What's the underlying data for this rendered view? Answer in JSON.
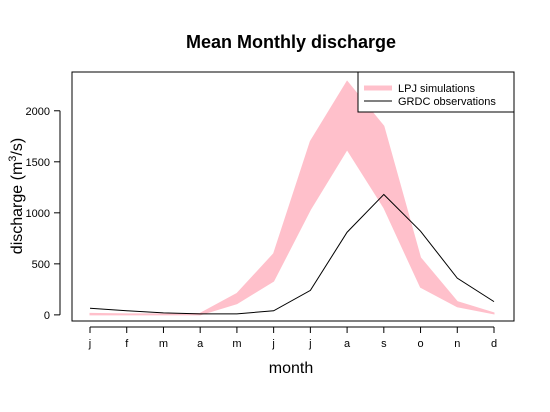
{
  "chart_data": {
    "type": "area",
    "title": "Mean Monthly discharge",
    "xlabel": "month",
    "ylabel_main": "discharge (m",
    "ylabel_sup": "3",
    "ylabel_tail": "/s)",
    "categories": [
      "j",
      "f",
      "m",
      "a",
      "m",
      "j",
      "j",
      "a",
      "s",
      "o",
      "n",
      "d"
    ],
    "yticks": [
      0,
      500,
      1000,
      1500,
      2000
    ],
    "ylim": [
      -60,
      2380
    ],
    "grid": false,
    "legend_position": "top-right",
    "series": [
      {
        "name": "LPJ simulations",
        "kind": "band",
        "color": "#ffc0cb",
        "lower": [
          0,
          0,
          0,
          0,
          110,
          330,
          1030,
          1620,
          1050,
          270,
          80,
          10
        ],
        "upper": [
          15,
          10,
          10,
          15,
          210,
          600,
          1700,
          2290,
          1850,
          560,
          130,
          20
        ]
      },
      {
        "name": "GRDC observations",
        "kind": "line",
        "color": "#000000",
        "values": [
          65,
          40,
          20,
          10,
          10,
          40,
          240,
          810,
          1180,
          820,
          360,
          130
        ]
      }
    ]
  }
}
